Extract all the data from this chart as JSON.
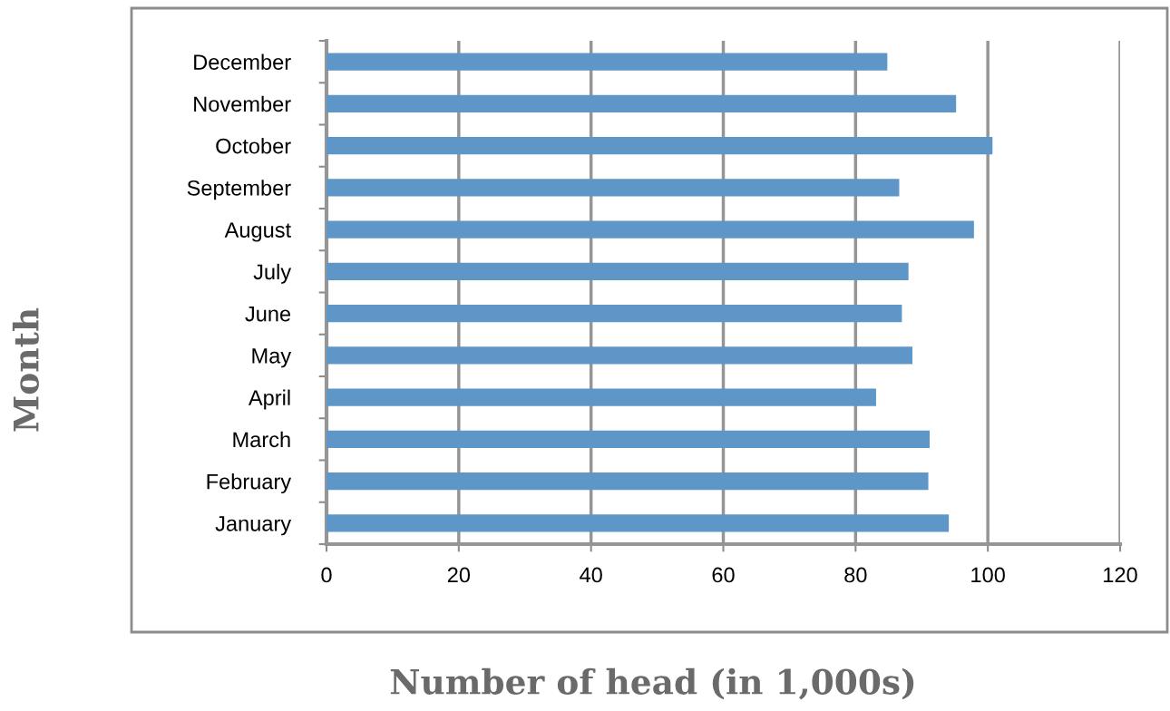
{
  "chart_data": {
    "type": "bar",
    "orientation": "horizontal",
    "xlabel": "Number of head (in 1,000s)",
    "ylabel": "Month",
    "categories": [
      "December",
      "November",
      "October",
      "September",
      "August",
      "July",
      "June",
      "May",
      "April",
      "March",
      "February",
      "January"
    ],
    "values": [
      84.8,
      95.2,
      100.7,
      86.6,
      97.9,
      88.0,
      87.0,
      88.6,
      83.1,
      91.2,
      91.0,
      94.1
    ],
    "color": "#5f96c8",
    "xlim": [
      0,
      120
    ],
    "xticks": [
      0,
      20,
      40,
      60,
      80,
      100,
      120
    ],
    "grid": "x",
    "legend": false
  }
}
